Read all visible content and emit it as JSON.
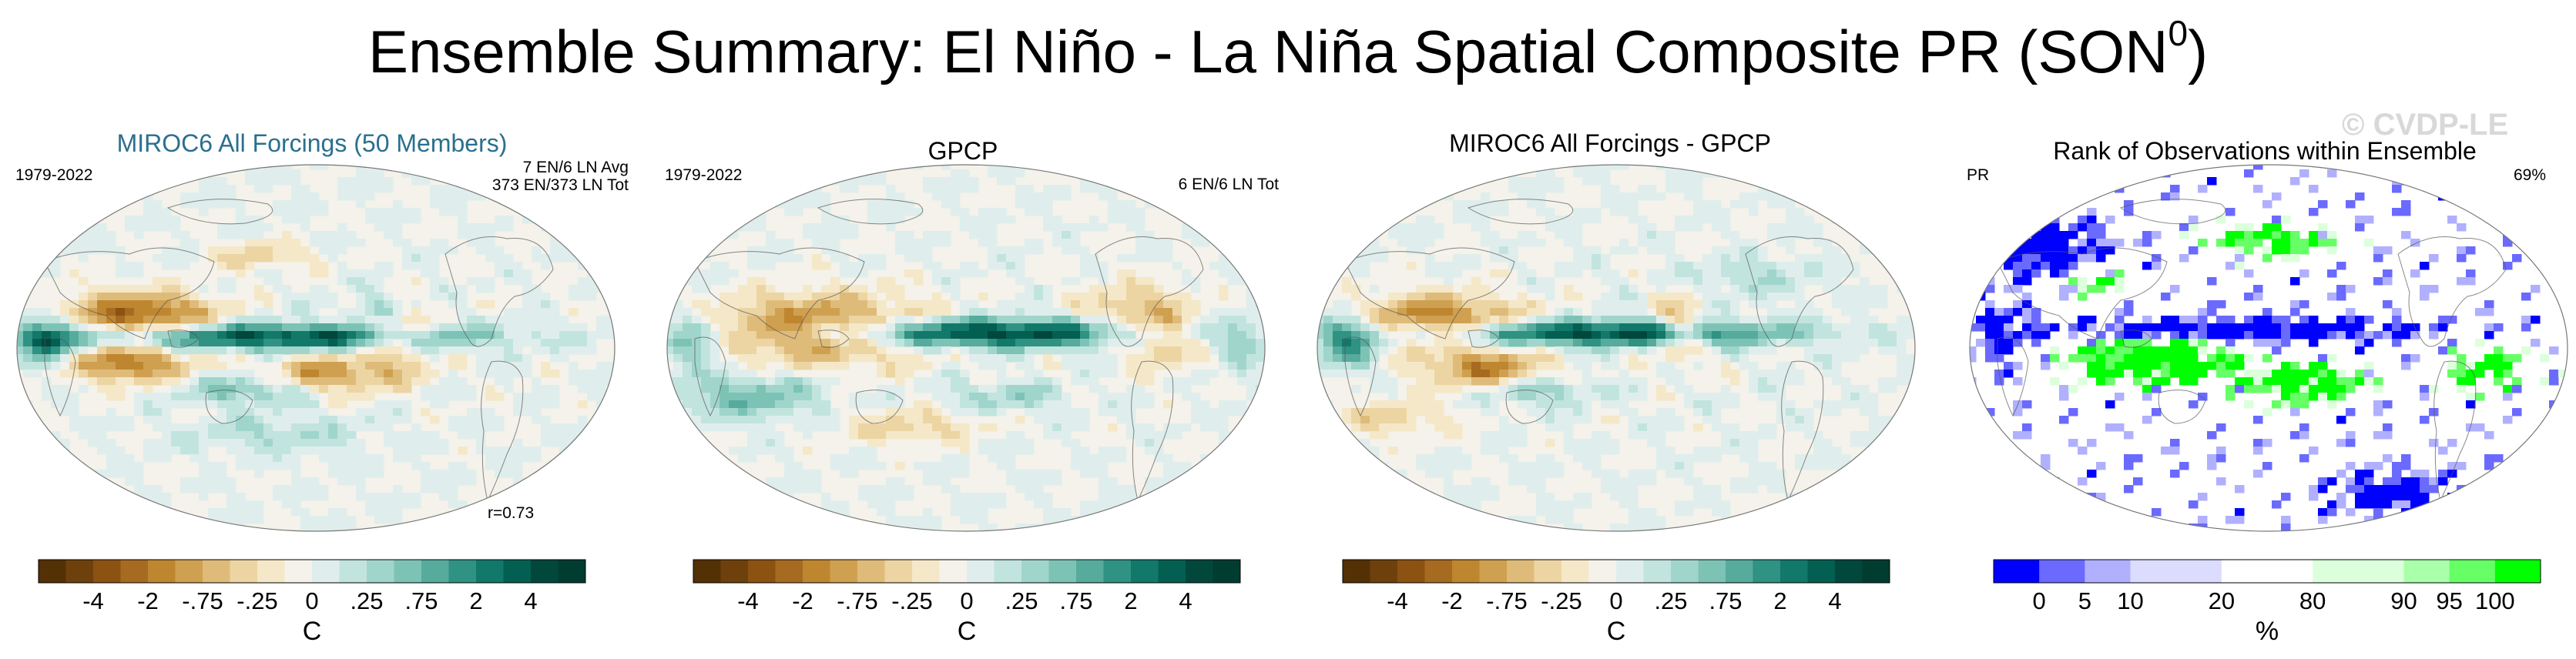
{
  "title": {
    "main": "Ensemble Summary: El Niño - La Niña Spatial Composite PR (SON",
    "superscript": "0",
    "close": ")"
  },
  "watermark": "© CVDP-LE",
  "colors": {
    "brown_dark": "#543005",
    "teal_dark": "#003c30",
    "blue": "#0000ff",
    "green": "#00ff00",
    "title_blue": "#2b6f8f"
  },
  "panels": [
    {
      "id": "miroc6",
      "title": "MIROC6 All Forcings (50 Members)",
      "title_color": "#2b6f8f",
      "left_label": "1979-2022",
      "right_label_1": "7 EN/6 LN Avg",
      "right_label_2": "373 EN/373 LN Tot",
      "bottom_right": "r=0.73"
    },
    {
      "id": "gpcp",
      "title": "GPCP",
      "title_color": "#000000",
      "left_label": "1979-2022",
      "right_label_1": "6 EN/6 LN Tot",
      "right_label_2": "",
      "bottom_right": ""
    },
    {
      "id": "diff",
      "title": "MIROC6 All Forcings - GPCP",
      "title_color": "#000000",
      "left_label": "",
      "right_label_1": "",
      "right_label_2": "",
      "bottom_right": ""
    },
    {
      "id": "rank",
      "title": "Rank of Observations within Ensemble",
      "title_color": "#000000",
      "left_label": "PR",
      "right_label_1": "69%",
      "right_label_2": "",
      "bottom_right": ""
    }
  ],
  "chart_data": [
    {
      "type": "heatmap",
      "title": "MIROC6 All Forcings (50 Members)",
      "colorbar": {
        "levels": [
          "-4",
          "-2",
          "-.75",
          "-.25",
          "0",
          ".25",
          ".75",
          "2",
          "4"
        ],
        "unit": "C",
        "colors": [
          "#543005",
          "#6e400c",
          "#8c5212",
          "#a66a20",
          "#bf8630",
          "#cfa050",
          "#dfbb7a",
          "#ecd5a3",
          "#f5e8c8",
          "#f4f2ea",
          "#dfeeec",
          "#c2e4de",
          "#a0d5cc",
          "#7cc3b6",
          "#56ab9d",
          "#2f9283",
          "#12786a",
          "#035f52",
          "#01473c",
          "#003c30"
        ]
      },
      "period": "1979-2022",
      "events": "7 EN/6 LN Avg",
      "events_total": "373 EN/373 LN Tot",
      "pattern_correlation": "r=0.73"
    },
    {
      "type": "heatmap",
      "title": "GPCP",
      "colorbar": {
        "levels": [
          "-4",
          "-2",
          "-.75",
          "-.25",
          "0",
          ".25",
          ".75",
          "2",
          "4"
        ],
        "unit": "C",
        "colors": [
          "#543005",
          "#6e400c",
          "#8c5212",
          "#a66a20",
          "#bf8630",
          "#cfa050",
          "#dfbb7a",
          "#ecd5a3",
          "#f5e8c8",
          "#f4f2ea",
          "#dfeeec",
          "#c2e4de",
          "#a0d5cc",
          "#7cc3b6",
          "#56ab9d",
          "#2f9283",
          "#12786a",
          "#035f52",
          "#01473c",
          "#003c30"
        ]
      },
      "period": "1979-2022",
      "events": "6 EN/6 LN Tot"
    },
    {
      "type": "heatmap",
      "title": "MIROC6 All Forcings - GPCP",
      "colorbar": {
        "levels": [
          "-4",
          "-2",
          "-.75",
          "-.25",
          "0",
          ".25",
          ".75",
          "2",
          "4"
        ],
        "unit": "C",
        "colors": [
          "#543005",
          "#6e400c",
          "#8c5212",
          "#a66a20",
          "#bf8630",
          "#cfa050",
          "#dfbb7a",
          "#ecd5a3",
          "#f5e8c8",
          "#f4f2ea",
          "#dfeeec",
          "#c2e4de",
          "#a0d5cc",
          "#7cc3b6",
          "#56ab9d",
          "#2f9283",
          "#12786a",
          "#035f52",
          "#01473c",
          "#003c30"
        ]
      }
    },
    {
      "type": "heatmap",
      "title": "Rank of Observations within Ensemble",
      "variable": "PR",
      "percent": "69%",
      "colorbar": {
        "levels": [
          "0",
          "5",
          "10",
          "20",
          "80",
          "90",
          "95",
          "100"
        ],
        "unit": "%",
        "colors": [
          "#0000ff",
          "#6a6aff",
          "#b0b0ff",
          "#dcdcff",
          "#dcdcff",
          "#ffffff",
          "#ffffff",
          "#dcffdc",
          "#dcffdc",
          "#aaffaa",
          "#66ff66",
          "#00ff00"
        ]
      }
    }
  ]
}
